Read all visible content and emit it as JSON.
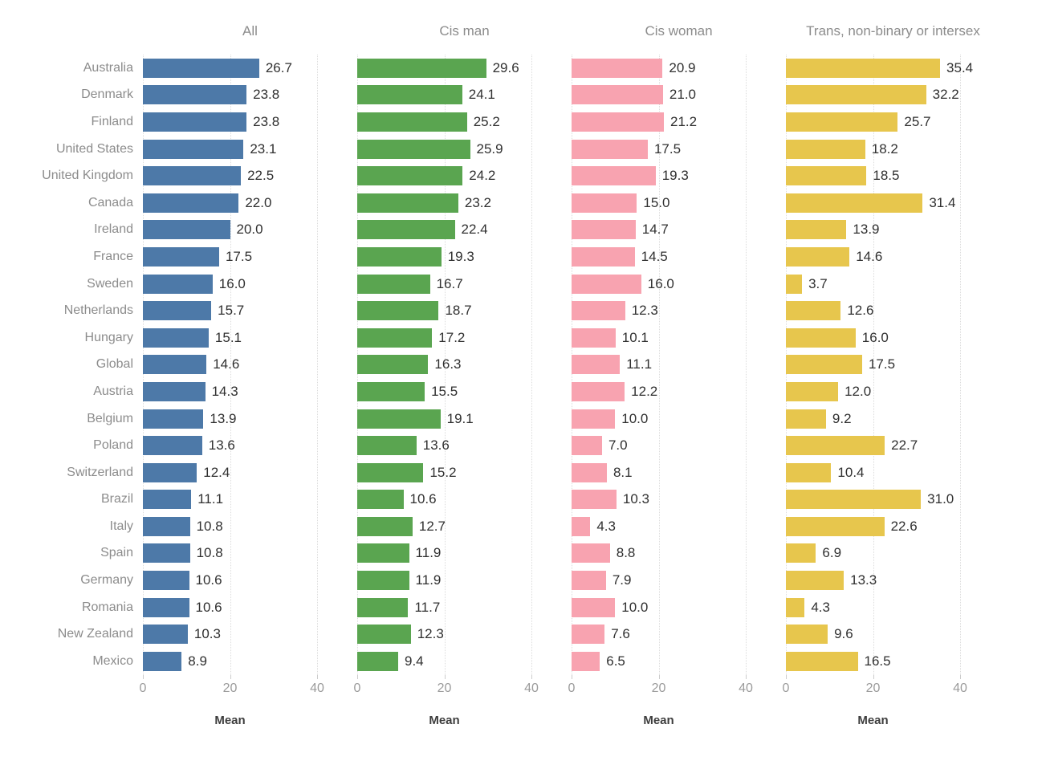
{
  "chart_data": {
    "type": "bar",
    "orientation": "horizontal",
    "title": "",
    "xlabel": "Mean",
    "x_ticks": [
      0,
      20,
      40
    ],
    "xlim": [
      0,
      40
    ],
    "grid": "dotted-vertical-at-ticks",
    "categories": [
      "Australia",
      "Denmark",
      "Finland",
      "United States",
      "United Kingdom",
      "Canada",
      "Ireland",
      "France",
      "Sweden",
      "Netherlands",
      "Hungary",
      "Global",
      "Austria",
      "Belgium",
      "Poland",
      "Switzerland",
      "Brazil",
      "Italy",
      "Spain",
      "Germany",
      "Romania",
      "New Zealand",
      "Mexico"
    ],
    "series": [
      {
        "name": "All",
        "color": "#4d79a8",
        "values": [
          26.7,
          23.8,
          23.8,
          23.1,
          22.5,
          22.0,
          20.0,
          17.5,
          16.0,
          15.7,
          15.1,
          14.6,
          14.3,
          13.9,
          13.6,
          12.4,
          11.1,
          10.8,
          10.8,
          10.6,
          10.6,
          10.3,
          8.9
        ]
      },
      {
        "name": "Cis man",
        "color": "#5aa550",
        "values": [
          29.6,
          24.1,
          25.2,
          25.9,
          24.2,
          23.2,
          22.4,
          19.3,
          16.7,
          18.7,
          17.2,
          16.3,
          15.5,
          19.1,
          13.6,
          15.2,
          10.6,
          12.7,
          11.9,
          11.9,
          11.7,
          12.3,
          9.4
        ]
      },
      {
        "name": "Cis woman",
        "color": "#f8a3b0",
        "values": [
          20.9,
          21.0,
          21.2,
          17.5,
          19.3,
          15.0,
          14.7,
          14.5,
          16.0,
          12.3,
          10.1,
          11.1,
          12.2,
          10.0,
          7.0,
          8.1,
          10.3,
          4.3,
          8.8,
          7.9,
          10.0,
          7.6,
          6.5
        ]
      },
      {
        "name": "Trans, non-binary or intersex",
        "color": "#e7c64d",
        "values": [
          35.4,
          32.2,
          25.7,
          18.2,
          18.5,
          31.4,
          13.9,
          14.6,
          3.7,
          12.6,
          16.0,
          17.5,
          12.0,
          9.2,
          22.7,
          10.4,
          31.0,
          22.6,
          6.9,
          13.3,
          4.3,
          9.6,
          16.5
        ]
      }
    ]
  }
}
